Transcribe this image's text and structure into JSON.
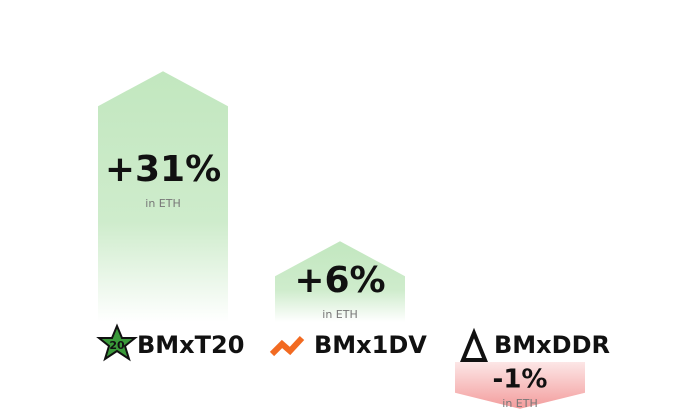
{
  "chart_data": {
    "type": "arrow-bar",
    "categories": [
      "BMxT20",
      "BMx1DV",
      "BMxDDR"
    ],
    "values": [
      31,
      6,
      -1
    ],
    "value_labels": [
      "+31%",
      "+6%",
      "-1%"
    ],
    "sublabel": "in ETH",
    "badge": "20",
    "positive_color": "#c2e7bf",
    "negative_color": "#f39c9c"
  }
}
